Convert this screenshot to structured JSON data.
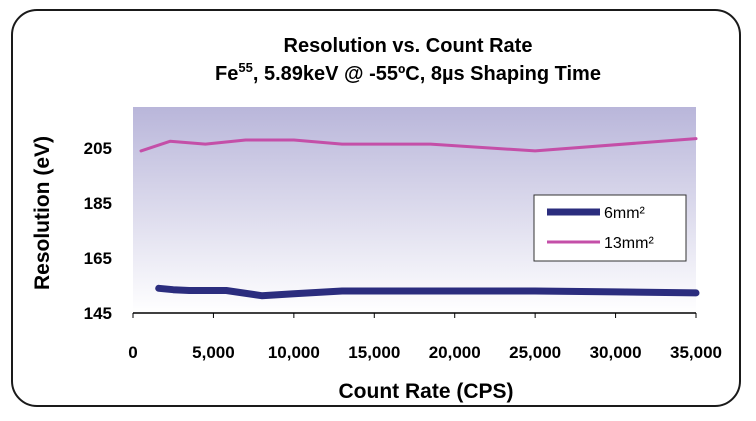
{
  "chart_data": {
    "type": "line",
    "title_line1": "Resolution vs. Count Rate",
    "title_line2_prefix": "Fe",
    "title_line2_superscript": "55",
    "title_line2_suffix": ", 5.89keV @ -55ºC, 8µs Shaping Time",
    "xlabel": "Count Rate (CPS)",
    "ylabel": "Resolution (eV)",
    "xlim": [
      0,
      35000
    ],
    "ylim": [
      145,
      220
    ],
    "x_ticks": [
      0,
      5000,
      10000,
      15000,
      20000,
      25000,
      30000,
      35000
    ],
    "x_tick_labels": [
      "0",
      "5,000",
      "10,000",
      "15,000",
      "20,000",
      "25,000",
      "30,000",
      "35,000"
    ],
    "y_ticks": [
      145,
      165,
      185,
      205
    ],
    "y_tick_labels": [
      "145",
      "165",
      "185",
      "205"
    ],
    "legend_position": "right",
    "series": [
      {
        "name": "6mm²",
        "color": "#2b2d7e",
        "x": [
          1600,
          2500,
          3500,
          5800,
          8000,
          10000,
          13000,
          18000,
          25000,
          30000,
          35000
        ],
        "y": [
          154,
          153.5,
          153.2,
          153.2,
          151.3,
          152,
          153,
          153,
          153,
          152.7,
          152.3
        ]
      },
      {
        "name": "13mm²",
        "color": "#c44fa8",
        "x": [
          500,
          2300,
          4500,
          7000,
          10000,
          13000,
          18500,
          25000,
          35000
        ],
        "y": [
          204,
          207.5,
          206.5,
          208,
          208,
          206.5,
          206.5,
          204,
          208.5
        ]
      }
    ]
  }
}
